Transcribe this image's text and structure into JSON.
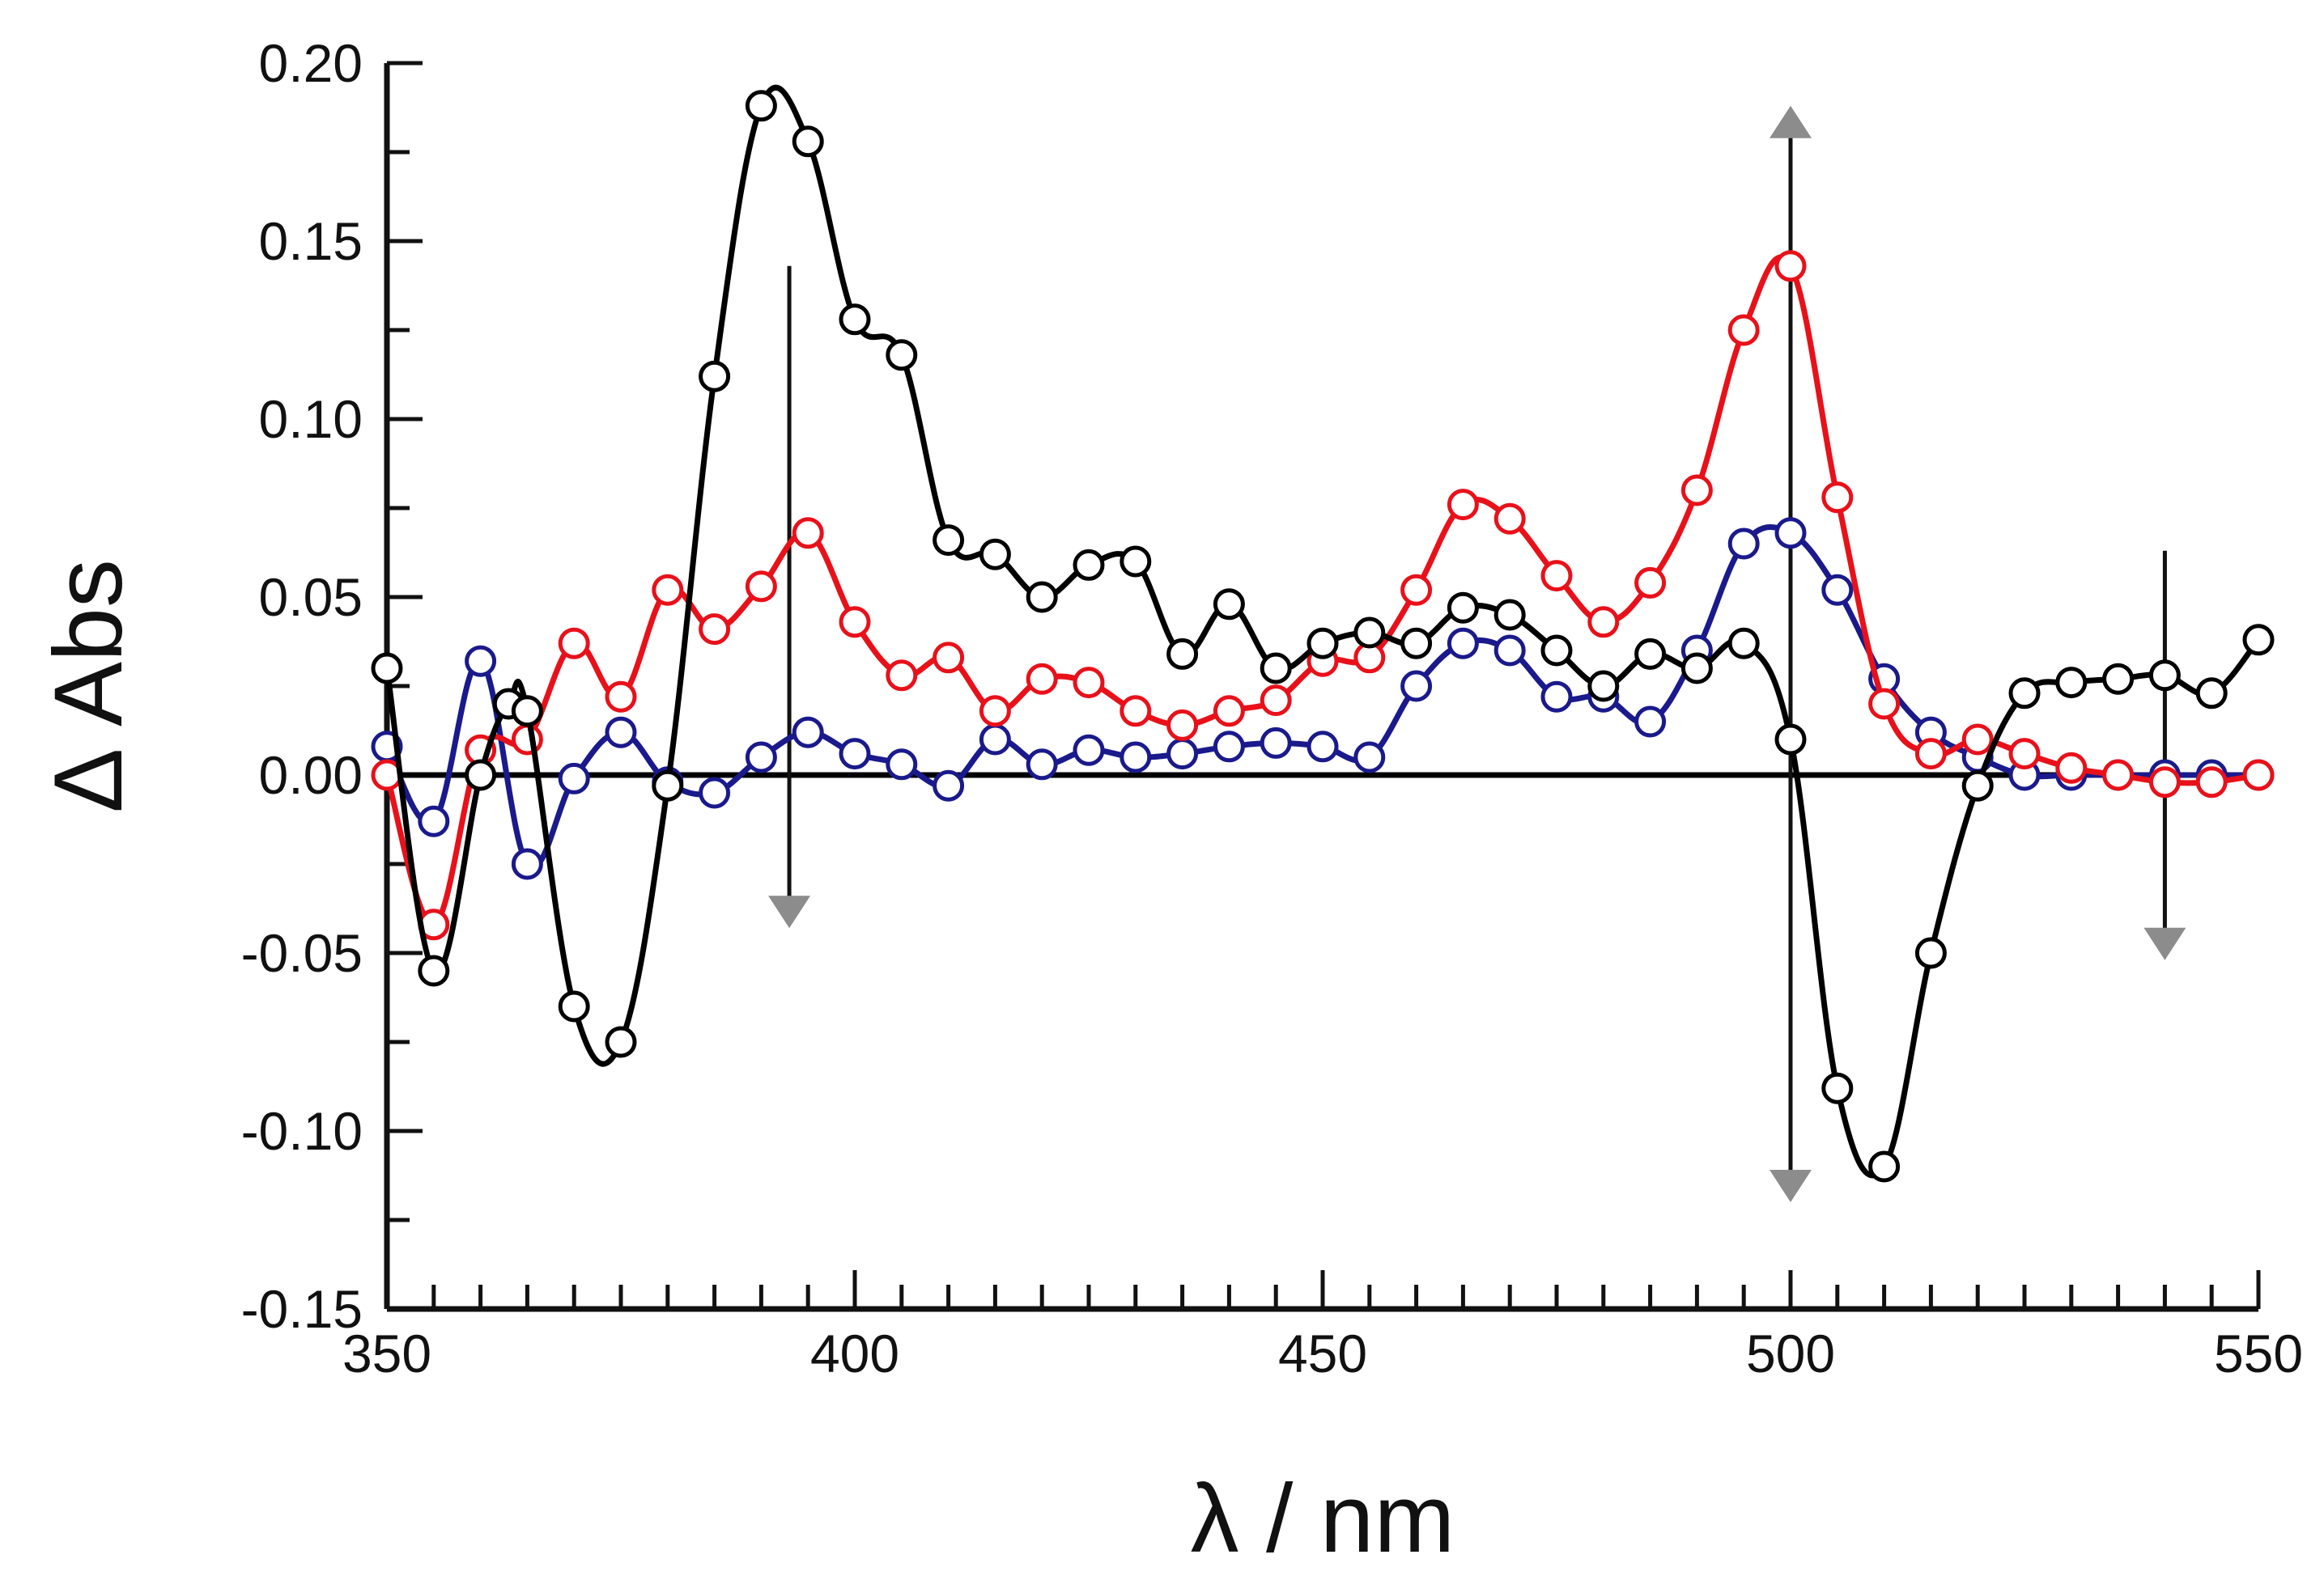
{
  "chart_data": {
    "type": "line",
    "title": "",
    "xlabel": "λ / nm",
    "ylabel": "Δ Abs",
    "xlim": [
      350,
      550
    ],
    "ylim": [
      -0.15,
      0.2
    ],
    "x_ticks": [
      350,
      400,
      450,
      500,
      550
    ],
    "x_tick_labels": [
      "350",
      "400",
      "450",
      "500",
      "550"
    ],
    "y_ticks": [
      -0.15,
      -0.1,
      -0.05,
      0.0,
      0.05,
      0.1,
      0.15,
      0.2
    ],
    "y_tick_labels": [
      "-0.15",
      "-0.10",
      "-0.05",
      "0.00",
      "0.05",
      "0.10",
      "0.15",
      "0.20"
    ],
    "x_minor_step": 5,
    "y_minor_step": 0.025,
    "grid": false,
    "legend": "none",
    "series": [
      {
        "name": "black",
        "color": "#000000",
        "x": [
          350,
          355,
          360,
          363,
          365,
          370,
          375,
          380,
          385,
          390,
          395,
          400,
          405,
          410,
          415,
          420,
          425,
          430,
          435,
          440,
          445,
          450,
          455,
          460,
          465,
          470,
          475,
          480,
          485,
          490,
          495,
          500,
          505,
          510,
          515,
          520,
          525,
          530,
          535,
          540,
          545,
          550
        ],
        "y": [
          0.03,
          -0.055,
          0.0,
          0.02,
          0.018,
          -0.065,
          -0.075,
          -0.003,
          0.112,
          0.188,
          0.178,
          0.128,
          0.118,
          0.066,
          0.062,
          0.05,
          0.059,
          0.06,
          0.034,
          0.048,
          0.03,
          0.037,
          0.04,
          0.037,
          0.047,
          0.045,
          0.035,
          0.025,
          0.034,
          0.03,
          0.037,
          0.01,
          -0.088,
          -0.11,
          -0.05,
          -0.003,
          0.023,
          0.026,
          0.027,
          0.028,
          0.023,
          0.038
        ]
      },
      {
        "name": "red",
        "color": "#e8111a",
        "x": [
          350,
          355,
          360,
          365,
          370,
          375,
          380,
          385,
          390,
          395,
          400,
          405,
          410,
          415,
          420,
          425,
          430,
          435,
          440,
          445,
          450,
          455,
          460,
          465,
          470,
          475,
          480,
          485,
          490,
          495,
          500,
          505,
          510,
          515,
          520,
          525,
          530,
          535,
          540,
          545,
          550
        ],
        "y": [
          0.0,
          -0.042,
          0.007,
          0.01,
          0.037,
          0.022,
          0.052,
          0.041,
          0.053,
          0.068,
          0.043,
          0.028,
          0.033,
          0.018,
          0.027,
          0.026,
          0.018,
          0.014,
          0.018,
          0.021,
          0.032,
          0.033,
          0.052,
          0.076,
          0.072,
          0.056,
          0.043,
          0.054,
          0.08,
          0.125,
          0.143,
          0.078,
          0.02,
          0.006,
          0.01,
          0.006,
          0.002,
          0.0,
          -0.002,
          -0.002,
          0.0
        ]
      },
      {
        "name": "blue",
        "color": "#1a1a8c",
        "x": [
          350,
          355,
          360,
          365,
          370,
          375,
          380,
          385,
          390,
          395,
          400,
          405,
          410,
          415,
          420,
          425,
          430,
          435,
          440,
          445,
          450,
          455,
          460,
          465,
          470,
          475,
          480,
          485,
          490,
          495,
          500,
          505,
          510,
          515,
          520,
          525,
          530,
          535,
          540,
          545,
          550
        ],
        "y": [
          0.008,
          -0.013,
          0.032,
          -0.025,
          -0.001,
          0.012,
          -0.002,
          -0.005,
          0.005,
          0.012,
          0.006,
          0.003,
          -0.003,
          0.01,
          0.003,
          0.007,
          0.005,
          0.006,
          0.008,
          0.009,
          0.008,
          0.005,
          0.025,
          0.037,
          0.035,
          0.022,
          0.022,
          0.015,
          0.035,
          0.065,
          0.068,
          0.052,
          0.027,
          0.012,
          0.005,
          0.0,
          0.0,
          0.0,
          0.0,
          0.0,
          0.0
        ]
      }
    ],
    "annotations": [
      {
        "type": "arrow",
        "description": "decrease arrow",
        "x": 393,
        "y_from": 0.143,
        "y_to": -0.043
      },
      {
        "type": "double-arrow",
        "description": "increase and decrease arrow",
        "x": 500,
        "y_from": 0.188,
        "y_to": -0.12
      },
      {
        "type": "arrow",
        "description": "decrease arrow",
        "x": 540,
        "y_from": 0.063,
        "y_to": -0.052
      }
    ]
  }
}
